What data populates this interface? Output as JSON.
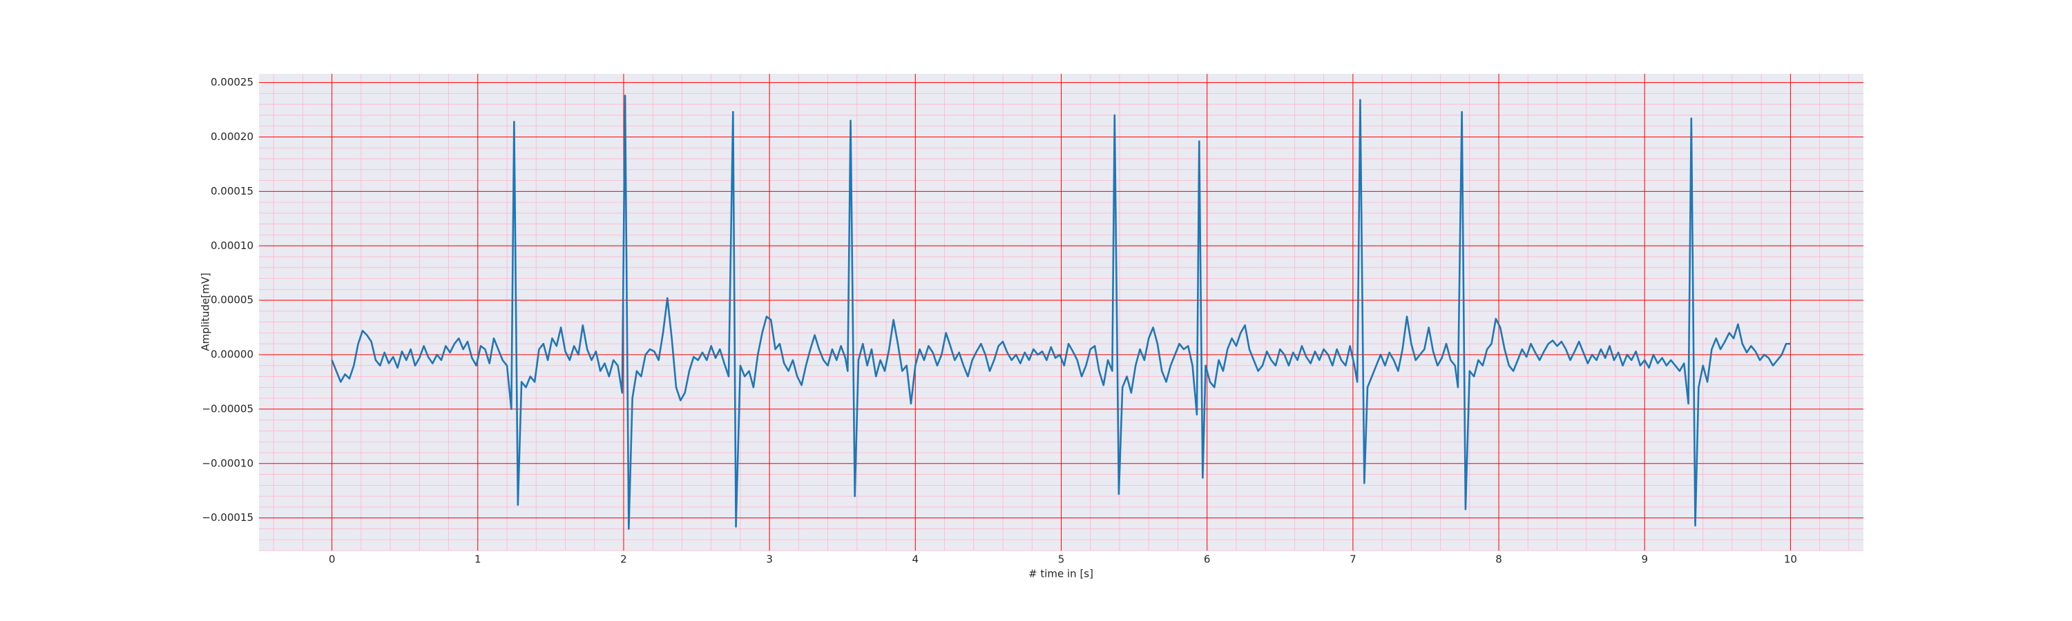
{
  "chart_data": {
    "type": "line",
    "xlabel": "# time in [s]",
    "ylabel": "Amplitude[mV]",
    "color": "#1f77b4",
    "background": "#eaeaf2",
    "grid": true,
    "grid_color": "#ff0000",
    "minor_grid": true,
    "minor_grid_color": "#ffb6c8",
    "xlim": [
      -0.5,
      10.5
    ],
    "ylim": [
      -0.00018,
      0.000258
    ],
    "xticks": [
      0,
      1,
      2,
      3,
      4,
      5,
      6,
      7,
      8,
      9,
      10
    ],
    "yticks": [
      {
        "value": -0.00015,
        "label": "−0.00015"
      },
      {
        "value": -0.0001,
        "label": "−0.00010"
      },
      {
        "value": -5e-05,
        "label": "−0.00005"
      },
      {
        "value": 0,
        "label": "0.00000"
      },
      {
        "value": 5e-05,
        "label": "0.00005"
      },
      {
        "value": 0.0001,
        "label": "0.00010"
      },
      {
        "value": 0.00015,
        "label": "0.00015"
      },
      {
        "value": 0.0002,
        "label": "0.00020"
      },
      {
        "value": 0.00025,
        "label": "0.00025"
      }
    ],
    "x": [
      0.0,
      0.03,
      0.06,
      0.09,
      0.12,
      0.15,
      0.18,
      0.21,
      0.24,
      0.27,
      0.3,
      0.33,
      0.36,
      0.39,
      0.42,
      0.45,
      0.48,
      0.51,
      0.54,
      0.57,
      0.6,
      0.63,
      0.66,
      0.69,
      0.72,
      0.75,
      0.78,
      0.81,
      0.84,
      0.87,
      0.9,
      0.93,
      0.96,
      0.99,
      1.02,
      1.05,
      1.08,
      1.11,
      1.14,
      1.17,
      1.2,
      1.23,
      1.249,
      1.275,
      1.3,
      1.33,
      1.36,
      1.39,
      1.42,
      1.45,
      1.48,
      1.51,
      1.54,
      1.57,
      1.6,
      1.63,
      1.66,
      1.69,
      1.72,
      1.75,
      1.78,
      1.81,
      1.84,
      1.87,
      1.9,
      1.93,
      1.96,
      1.99,
      2.01,
      2.035,
      2.06,
      2.09,
      2.12,
      2.15,
      2.18,
      2.21,
      2.24,
      2.27,
      2.3,
      2.33,
      2.36,
      2.39,
      2.42,
      2.45,
      2.48,
      2.51,
      2.54,
      2.57,
      2.6,
      2.63,
      2.66,
      2.69,
      2.72,
      2.75,
      2.77,
      2.8,
      2.83,
      2.86,
      2.89,
      2.92,
      2.95,
      2.98,
      3.01,
      3.04,
      3.07,
      3.1,
      3.13,
      3.16,
      3.19,
      3.22,
      3.25,
      3.28,
      3.31,
      3.34,
      3.37,
      3.4,
      3.43,
      3.46,
      3.49,
      3.52,
      3.536,
      3.556,
      3.585,
      3.61,
      3.64,
      3.67,
      3.7,
      3.73,
      3.76,
      3.79,
      3.82,
      3.85,
      3.88,
      3.91,
      3.94,
      3.97,
      4.0,
      4.03,
      4.06,
      4.09,
      4.12,
      4.15,
      4.18,
      4.21,
      4.24,
      4.27,
      4.3,
      4.33,
      4.36,
      4.39,
      4.42,
      4.45,
      4.48,
      4.51,
      4.54,
      4.57,
      4.6,
      4.63,
      4.66,
      4.69,
      4.72,
      4.75,
      4.78,
      4.81,
      4.84,
      4.87,
      4.9,
      4.93,
      4.96,
      4.99,
      5.02,
      5.05,
      5.08,
      5.11,
      5.14,
      5.17,
      5.2,
      5.23,
      5.26,
      5.29,
      5.32,
      5.35,
      5.366,
      5.395,
      5.42,
      5.45,
      5.48,
      5.51,
      5.54,
      5.57,
      5.6,
      5.63,
      5.66,
      5.69,
      5.72,
      5.75,
      5.78,
      5.81,
      5.84,
      5.87,
      5.9,
      5.93,
      5.946,
      5.97,
      5.99,
      6.02,
      6.05,
      6.08,
      6.11,
      6.14,
      6.17,
      6.2,
      6.23,
      6.26,
      6.29,
      6.32,
      6.35,
      6.38,
      6.41,
      6.44,
      6.47,
      6.5,
      6.53,
      6.56,
      6.59,
      6.62,
      6.65,
      6.68,
      6.71,
      6.74,
      6.77,
      6.8,
      6.83,
      6.86,
      6.89,
      6.92,
      6.95,
      6.98,
      7.01,
      7.03,
      7.05,
      7.078,
      7.1,
      7.13,
      7.16,
      7.19,
      7.22,
      7.25,
      7.28,
      7.31,
      7.34,
      7.37,
      7.4,
      7.43,
      7.46,
      7.49,
      7.52,
      7.55,
      7.58,
      7.61,
      7.64,
      7.67,
      7.7,
      7.72,
      7.747,
      7.772,
      7.8,
      7.83,
      7.86,
      7.89,
      7.92,
      7.95,
      7.98,
      8.01,
      8.04,
      8.07,
      8.1,
      8.13,
      8.16,
      8.19,
      8.22,
      8.25,
      8.28,
      8.31,
      8.34,
      8.37,
      8.4,
      8.43,
      8.46,
      8.49,
      8.52,
      8.55,
      8.58,
      8.61,
      8.64,
      8.67,
      8.7,
      8.73,
      8.76,
      8.79,
      8.82,
      8.85,
      8.88,
      8.91,
      8.94,
      8.97,
      9.0,
      9.03,
      9.06,
      9.09,
      9.12,
      9.15,
      9.18,
      9.21,
      9.24,
      9.27,
      9.3,
      9.32,
      9.347,
      9.37,
      9.4,
      9.43,
      9.46,
      9.49,
      9.52,
      9.55,
      9.58,
      9.61,
      9.64,
      9.67,
      9.7,
      9.73,
      9.76,
      9.79,
      9.82,
      9.85,
      9.88,
      9.91,
      9.94,
      9.97,
      10.0
    ],
    "values": [
      -5e-06,
      -1.5e-05,
      -2.5e-05,
      -1.8e-05,
      -2.2e-05,
      -1e-05,
      1e-05,
      2.2e-05,
      1.8e-05,
      1.2e-05,
      -5e-06,
      -1e-05,
      2e-06,
      -8e-06,
      -2e-06,
      -1.2e-05,
      3e-06,
      -5e-06,
      5e-06,
      -1e-05,
      -3e-06,
      8e-06,
      -2e-06,
      -8e-06,
      0,
      -5e-06,
      8e-06,
      2e-06,
      1e-05,
      1.5e-05,
      5e-06,
      1.2e-05,
      -3e-06,
      -1e-05,
      8e-06,
      5e-06,
      -8e-06,
      1.5e-05,
      5e-06,
      -5e-06,
      -1e-05,
      -5e-05,
      0.000214,
      -0.000138,
      -2.5e-05,
      -3e-05,
      -2e-05,
      -2.5e-05,
      5e-06,
      1e-05,
      -5e-06,
      1.5e-05,
      8e-06,
      2.5e-05,
      3e-06,
      -5e-06,
      8e-06,
      0,
      2.7e-05,
      5e-06,
      -5e-06,
      3e-06,
      -1.5e-05,
      -8e-06,
      -2e-05,
      -5e-06,
      -1e-05,
      -3.5e-05,
      0.000238,
      -0.00016,
      -4e-05,
      -1.5e-05,
      -2e-05,
      0,
      5e-06,
      3e-06,
      -5e-06,
      2e-05,
      5.2e-05,
      1.5e-05,
      -3e-05,
      -4.2e-05,
      -3.5e-05,
      -1.5e-05,
      -2e-06,
      -5e-06,
      2e-06,
      -5e-06,
      8e-06,
      -3e-06,
      5e-06,
      -8e-06,
      -2e-05,
      0.000223,
      -0.000158,
      -1e-05,
      -2e-05,
      -1.5e-05,
      -3e-05,
      0,
      2e-05,
      3.5e-05,
      3.2e-05,
      5e-06,
      1e-05,
      -8e-06,
      -1.5e-05,
      -5e-06,
      -2e-05,
      -2.8e-05,
      -1e-05,
      5e-06,
      1.8e-05,
      5e-06,
      -5e-06,
      -1e-05,
      5e-06,
      -5e-06,
      8e-06,
      -3e-06,
      -1.5e-05,
      0.000215,
      -0.00013,
      -5e-06,
      1e-05,
      -1e-05,
      5e-06,
      -2e-05,
      -5e-06,
      -1.5e-05,
      5e-06,
      3.2e-05,
      1e-05,
      -1.5e-05,
      -1e-05,
      -4.5e-05,
      -1e-05,
      5e-06,
      -5e-06,
      8e-06,
      2e-06,
      -1e-05,
      0,
      2e-05,
      8e-06,
      -5e-06,
      2e-06,
      -1e-05,
      -2e-05,
      -5e-06,
      3e-06,
      1e-05,
      0,
      -1.5e-05,
      -5e-06,
      8e-06,
      1.2e-05,
      2e-06,
      -5e-06,
      0,
      -8e-06,
      2e-06,
      -5e-06,
      5e-06,
      0,
      3e-06,
      -5e-06,
      7e-06,
      -3e-06,
      0,
      -1e-05,
      1e-05,
      3e-06,
      -5e-06,
      -2e-05,
      -1e-05,
      5e-06,
      8e-06,
      -1.5e-05,
      -2.8e-05,
      -5e-06,
      -1.5e-05,
      0.00022,
      -0.000128,
      -3e-05,
      -2e-05,
      -3.5e-05,
      -1e-05,
      5e-06,
      -5e-06,
      1.5e-05,
      2.5e-05,
      1e-05,
      -1.5e-05,
      -2.5e-05,
      -1e-05,
      0,
      1e-05,
      5e-06,
      8e-06,
      -1e-05,
      -5.5e-05,
      0.000196,
      -0.000113,
      -1e-05,
      -2.5e-05,
      -3e-05,
      -5e-06,
      -1.5e-05,
      5e-06,
      1.5e-05,
      8e-06,
      2e-05,
      2.7e-05,
      5e-06,
      -5e-06,
      -1.5e-05,
      -1e-05,
      3e-06,
      -5e-06,
      -1e-05,
      5e-06,
      0,
      -1e-05,
      2e-06,
      -5e-06,
      8e-06,
      -2e-06,
      -8e-06,
      3e-06,
      -5e-06,
      5e-06,
      0,
      -1e-05,
      5e-06,
      -5e-06,
      -1e-05,
      8e-06,
      -1e-05,
      -2.5e-05,
      0.000234,
      -0.000118,
      -3e-05,
      -2e-05,
      -1e-05,
      0,
      -1e-05,
      2e-06,
      -5e-06,
      -1.5e-05,
      5e-06,
      3.5e-05,
      1e-05,
      -5e-06,
      0,
      5e-06,
      2.5e-05,
      3e-06,
      -1e-05,
      -3e-06,
      1e-05,
      -5e-06,
      -1e-05,
      -3e-05,
      0.000223,
      -0.000142,
      -1.5e-05,
      -2e-05,
      -5e-06,
      -1e-05,
      5e-06,
      1e-05,
      3.3e-05,
      2.5e-05,
      5e-06,
      -1e-05,
      -1.5e-05,
      -5e-06,
      5e-06,
      -2e-06,
      1e-05,
      2e-06,
      -5e-06,
      3e-06,
      1e-05,
      1.3e-05,
      8e-06,
      1.2e-05,
      5e-06,
      -5e-06,
      3e-06,
      1.2e-05,
      2e-06,
      -8e-06,
      0,
      -5e-06,
      5e-06,
      -3e-06,
      8e-06,
      -5e-06,
      2e-06,
      -1e-05,
      0,
      -5e-06,
      3e-06,
      -1e-05,
      -5e-06,
      -1.2e-05,
      0,
      -8e-06,
      -3e-06,
      -1e-05,
      -5e-06,
      -1e-05,
      -1.5e-05,
      -8e-06,
      -4.5e-05,
      0.000217,
      -0.000157,
      -3e-05,
      -1e-05,
      -2.5e-05,
      5e-06,
      1.5e-05,
      5e-06,
      1.2e-05,
      2e-05,
      1.5e-05,
      2.8e-05,
      1e-05,
      2e-06,
      8e-06,
      3e-06,
      -5e-06,
      0,
      -3e-06,
      -1e-05,
      -5e-06,
      0,
      1e-05,
      1e-05
    ]
  }
}
